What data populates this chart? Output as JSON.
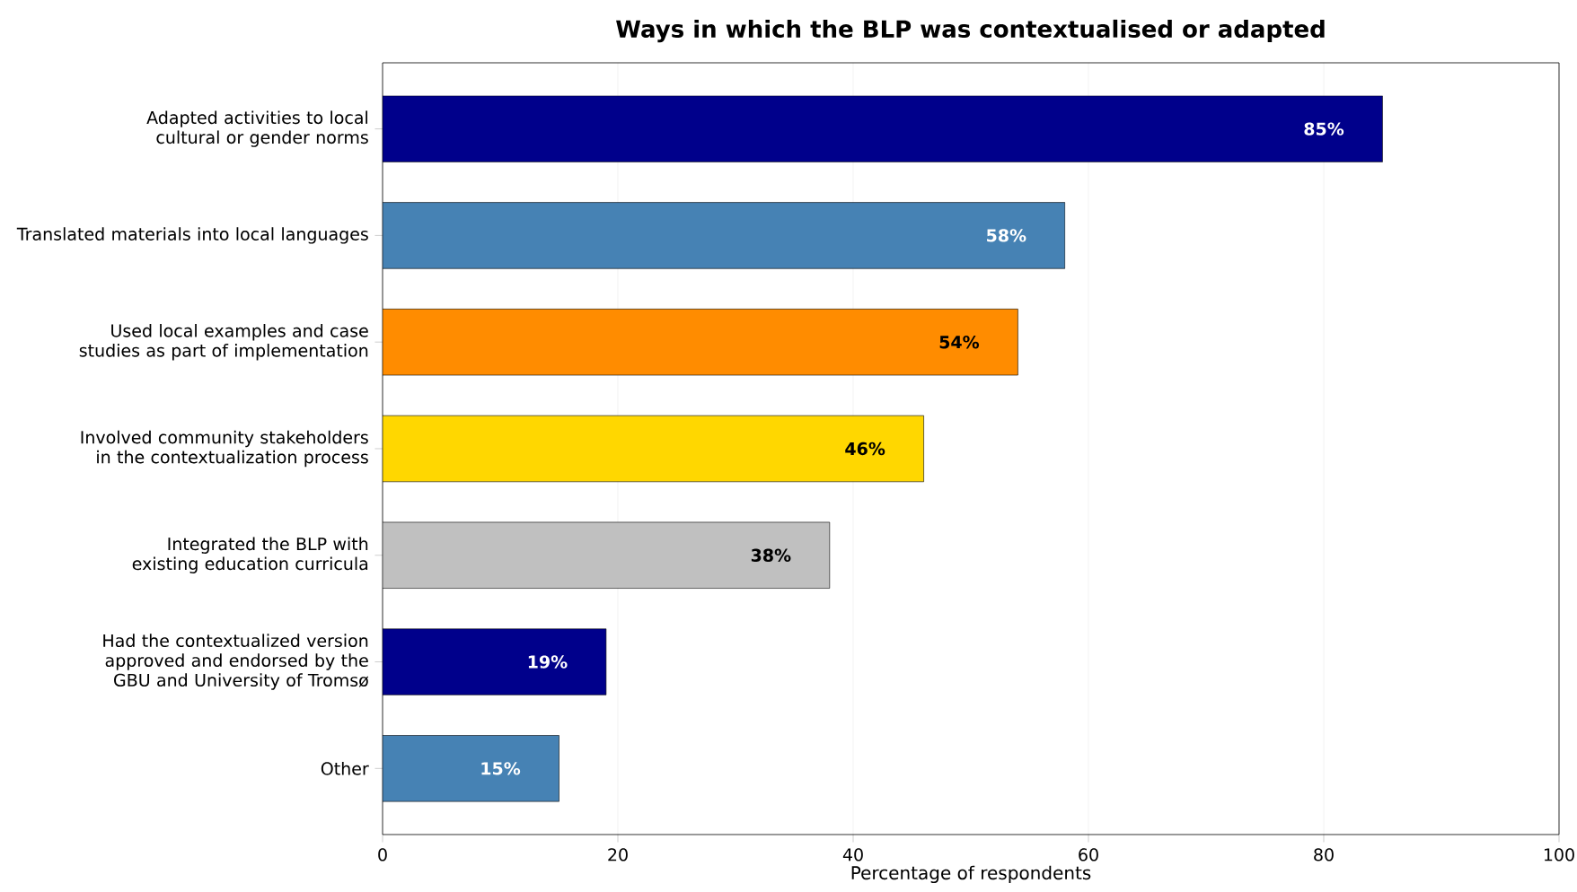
{
  "chart_data": {
    "type": "bar",
    "orientation": "horizontal",
    "title": "Ways in which the BLP was contextualised or adapted",
    "xlabel": "Percentage of respondents",
    "categories": [
      "Adapted activities to local cultural or gender norms",
      "Translated materials into local languages",
      "Used local examples and case studies as part of implementation",
      "Involved community stakeholders in the contextualization process",
      "Integrated the BLP with existing education curricula",
      "Had the contextualized version approved and endorsed by the GBU and University of Tromsø",
      "Other"
    ],
    "values": [
      85,
      58,
      54,
      46,
      38,
      19,
      15
    ],
    "colors": [
      "#00008b",
      "#4682b4",
      "#ff8c00",
      "#ffd700",
      "#c0c0c0",
      "#00008b",
      "#4682b4"
    ],
    "value_labels": [
      "85%",
      "58%",
      "54%",
      "46%",
      "38%",
      "19%",
      "15%"
    ],
    "xlim": [
      0,
      100
    ],
    "xticks": [
      0,
      20,
      40,
      60,
      80,
      100
    ],
    "grid": "x"
  }
}
